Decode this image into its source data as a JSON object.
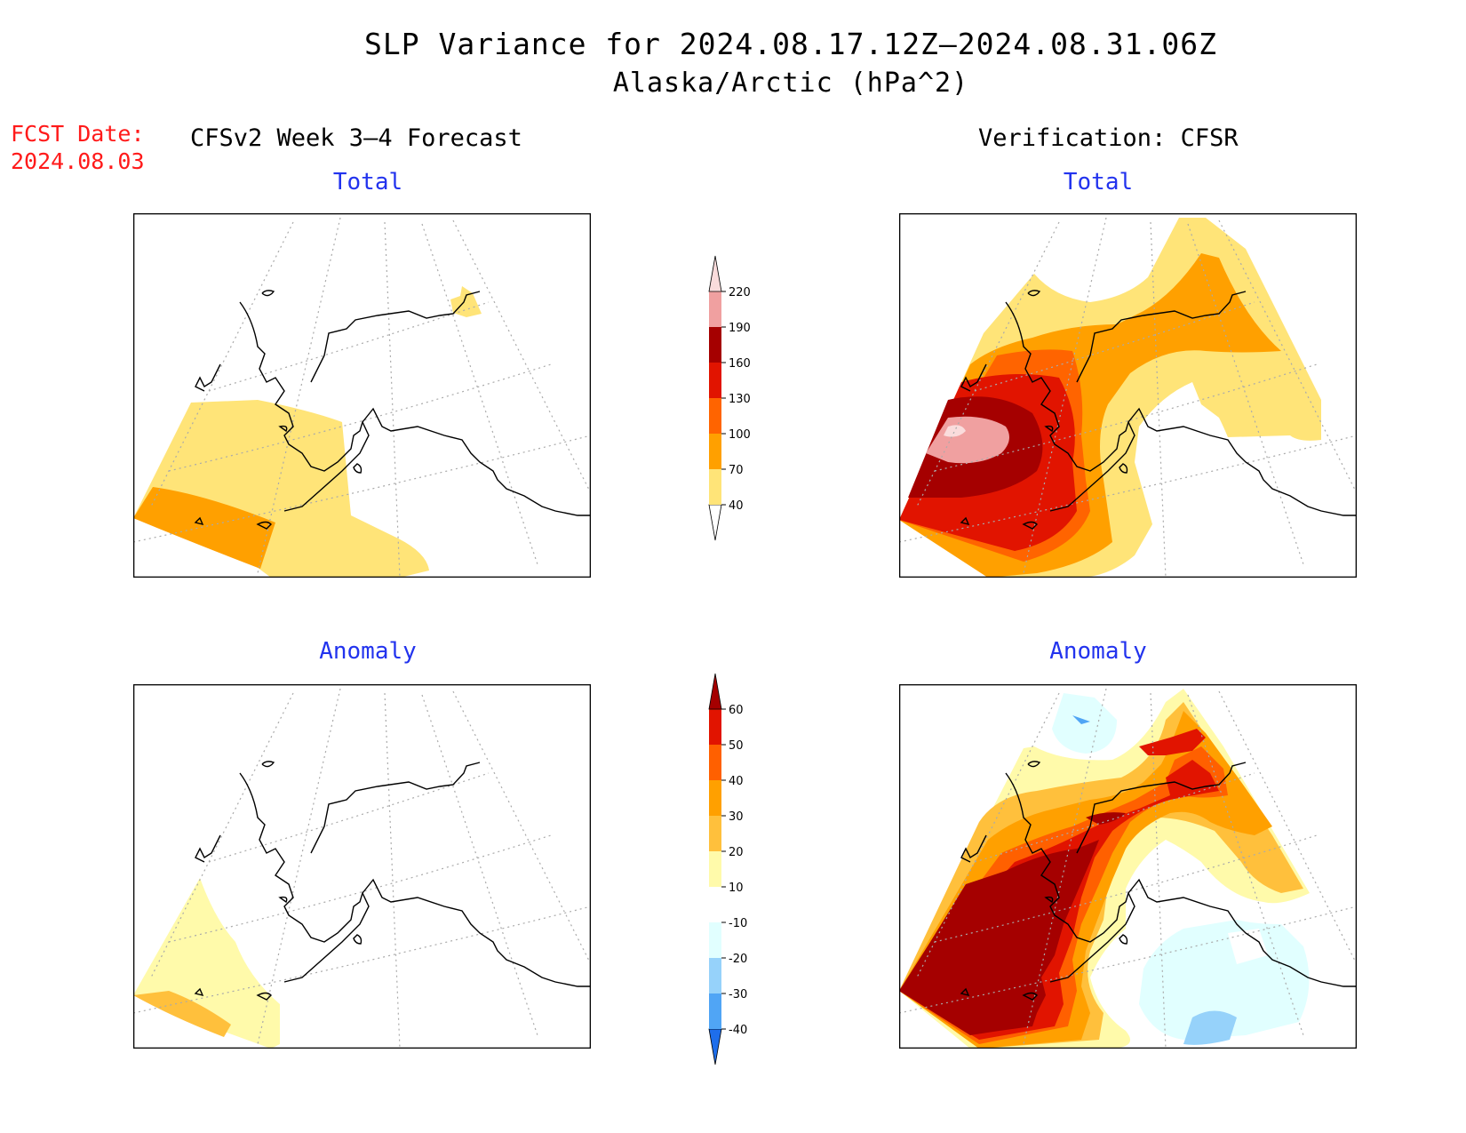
{
  "header": {
    "title_line1": "SLP Variance for 2024.08.17.12Z–2024.08.31.06Z",
    "title_line2": "Alaska/Arctic (hPa^2)",
    "fcst_label": "FCST Date:",
    "fcst_date": "2024.08.03",
    "left_column_title": "CFSv2 Week 3–4 Forecast",
    "right_column_title": "Verification: CFSR"
  },
  "panels": {
    "fcst_total_title": "Total",
    "fcst_anomaly_title": "Anomaly",
    "verif_total_title": "Total",
    "verif_anomaly_title": "Anomaly"
  },
  "colorbars": {
    "total": {
      "labels": [
        "40",
        "70",
        "100",
        "130",
        "160",
        "190",
        "220"
      ],
      "colors": [
        "#ffffff",
        "#ffe478",
        "#ffa000",
        "#ff6400",
        "#e11400",
        "#a50000",
        "#f0a0a0",
        "#fadcdc"
      ]
    },
    "anomaly": {
      "labels": [
        "-40",
        "-30",
        "-20",
        "-10",
        "10",
        "20",
        "30",
        "40",
        "50",
        "60"
      ],
      "colors": [
        "#1e6eeb",
        "#50a5f5",
        "#96d2fa",
        "#e1ffff",
        "#ffffff",
        "#fffaaa",
        "#ffc03c",
        "#ffa000",
        "#ff6000",
        "#e11400",
        "#a50000"
      ]
    }
  }
}
